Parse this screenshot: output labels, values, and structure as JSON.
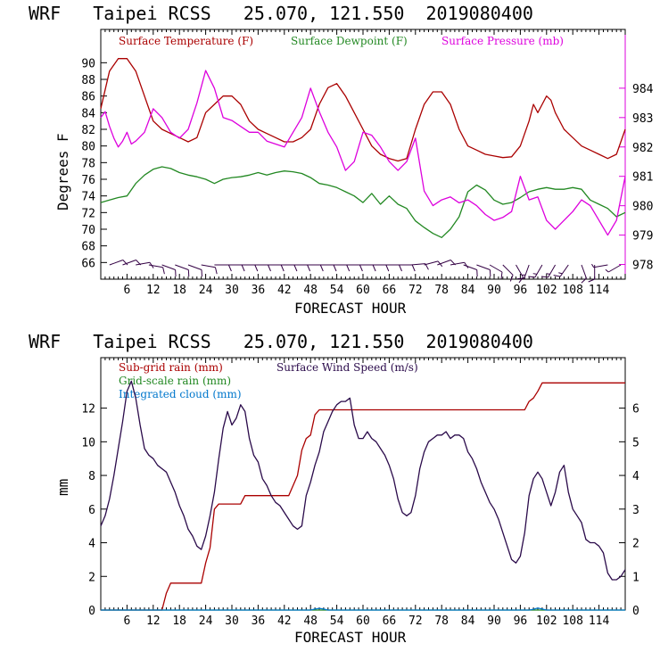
{
  "colors": {
    "temperature": "#aa0000",
    "dewpoint": "#228822",
    "pressure": "#dd00dd",
    "sub_grid_rain": "#aa0000",
    "wind_speed": "#2a0a4a",
    "grid_scale_rain": "#228822",
    "integrated_cloud": "#0077cc",
    "axis": "#000000",
    "right_axis_top": "#dd00dd"
  },
  "chart_data": [
    {
      "type": "line",
      "title": "WRF   Taipei RCSS   25.070, 121.550  2019080400",
      "xlabel": "FORECAST HOUR",
      "ylabel": "Degrees F",
      "xlim": [
        0,
        120
      ],
      "ylim": [
        64,
        94
      ],
      "y2lim": [
        977.5,
        986
      ],
      "xticks": [
        "6",
        "12",
        "18",
        "24",
        "30",
        "36",
        "42",
        "48",
        "54",
        "60",
        "66",
        "72",
        "78",
        "84",
        "90",
        "96",
        "102",
        "108",
        "114"
      ],
      "yticks": [
        "66",
        "68",
        "70",
        "72",
        "74",
        "76",
        "78",
        "80",
        "82",
        "84",
        "86",
        "88",
        "90"
      ],
      "y2ticks": [
        "978",
        "979",
        "980",
        "981",
        "982",
        "983",
        "984"
      ],
      "legend": [
        "Surface Temperature (F)",
        "Surface Dewpoint (F)",
        "Surface Pressure (mb)"
      ],
      "series": [
        {
          "name": "Surface Temperature (F)",
          "axis": "left",
          "x": [
            0,
            2,
            4,
            6,
            8,
            10,
            12,
            14,
            16,
            18,
            20,
            22,
            24,
            26,
            28,
            30,
            32,
            34,
            36,
            38,
            40,
            42,
            44,
            46,
            48,
            50,
            52,
            54,
            56,
            58,
            60,
            62,
            64,
            66,
            68,
            70,
            72,
            74,
            76,
            78,
            80,
            82,
            84,
            86,
            88,
            90,
            92,
            94,
            96,
            98,
            99,
            100,
            101,
            102,
            103,
            104,
            106,
            108,
            110,
            112,
            114,
            116,
            118,
            120
          ],
          "values": [
            84.5,
            89,
            90.5,
            90.5,
            89,
            86,
            83,
            82,
            81.5,
            81,
            80.5,
            81,
            84,
            85,
            86,
            86,
            85,
            83,
            82,
            81.5,
            81,
            80.5,
            80.5,
            81,
            82,
            85,
            87,
            87.5,
            86,
            84,
            82,
            80,
            79,
            78.5,
            78.2,
            78.5,
            82,
            85,
            86.5,
            86.5,
            85,
            82,
            80,
            79.5,
            79,
            78.8,
            78.6,
            78.7,
            80,
            83,
            85,
            84,
            85,
            86,
            85.5,
            84,
            82,
            81,
            80,
            79.5,
            79,
            78.5,
            79,
            82
          ]
        },
        {
          "name": "Surface Dewpoint (F)",
          "axis": "left",
          "x": [
            0,
            2,
            4,
            6,
            8,
            10,
            12,
            14,
            16,
            18,
            20,
            22,
            24,
            26,
            28,
            30,
            32,
            34,
            36,
            38,
            40,
            42,
            44,
            46,
            48,
            50,
            52,
            54,
            56,
            58,
            60,
            62,
            64,
            66,
            68,
            70,
            72,
            74,
            76,
            78,
            80,
            82,
            84,
            86,
            88,
            90,
            92,
            94,
            96,
            98,
            100,
            102,
            104,
            106,
            108,
            110,
            112,
            114,
            116,
            118,
            120
          ],
          "values": [
            73.2,
            73.5,
            73.8,
            74,
            75.5,
            76.5,
            77.2,
            77.5,
            77.3,
            76.8,
            76.5,
            76.3,
            76,
            75.5,
            76,
            76.2,
            76.3,
            76.5,
            76.8,
            76.5,
            76.8,
            77,
            76.9,
            76.7,
            76.2,
            75.5,
            75.3,
            75,
            74.5,
            74,
            73.2,
            74.3,
            73,
            74,
            73,
            72.5,
            71,
            70.2,
            69.5,
            69,
            70,
            71.5,
            74.5,
            75.3,
            74.7,
            73.5,
            73,
            73.2,
            73.8,
            74.5,
            74.8,
            75,
            74.8,
            74.8,
            75,
            74.8,
            73.5,
            73,
            72.5,
            71.5,
            72
          ]
        },
        {
          "name": "Surface Pressure (mb)",
          "axis": "right",
          "x": [
            0,
            1,
            2,
            3,
            4,
            5,
            6,
            7,
            8,
            10,
            12,
            14,
            16,
            18,
            20,
            22,
            24,
            26,
            28,
            30,
            32,
            34,
            36,
            38,
            40,
            42,
            44,
            46,
            48,
            50,
            52,
            54,
            56,
            58,
            60,
            62,
            64,
            66,
            68,
            70,
            72,
            74,
            76,
            78,
            80,
            82,
            84,
            86,
            88,
            90,
            92,
            94,
            96,
            98,
            100,
            102,
            104,
            106,
            108,
            110,
            112,
            114,
            116,
            118,
            120
          ],
          "values": [
            983,
            983.2,
            982.7,
            982.3,
            982,
            982.2,
            982.5,
            982.1,
            982.2,
            982.5,
            983.3,
            983,
            982.5,
            982.3,
            982.6,
            983.5,
            984.6,
            984,
            983,
            982.9,
            982.7,
            982.5,
            982.5,
            982.2,
            982.1,
            982,
            982.5,
            983,
            984,
            983.2,
            982.5,
            982,
            981.2,
            981.5,
            982.5,
            982.4,
            982,
            981.5,
            981.2,
            981.5,
            982.3,
            980.5,
            980,
            980.2,
            980.3,
            980.1,
            980.2,
            980,
            979.7,
            979.5,
            979.6,
            979.8,
            981,
            980.2,
            980.3,
            979.5,
            979.2,
            979.5,
            979.8,
            980.2,
            980,
            979.5,
            979,
            979.5,
            981
          ]
        }
      ],
      "wind_barbs": {
        "name": "Surface wind barbs",
        "x": [
          2,
          5,
          8,
          11,
          14,
          17,
          20,
          23,
          26,
          29,
          32,
          35,
          38,
          41,
          44,
          47,
          50,
          53,
          56,
          59,
          62,
          65,
          68,
          71,
          74,
          77,
          80,
          83,
          86,
          89,
          92,
          95,
          98,
          101,
          104,
          107,
          110,
          113,
          116,
          119
        ],
        "direction_deg": [
          70,
          70,
          80,
          100,
          110,
          110,
          110,
          100,
          90,
          90,
          90,
          90,
          90,
          90,
          90,
          90,
          90,
          90,
          90,
          90,
          90,
          90,
          90,
          85,
          75,
          70,
          80,
          110,
          110,
          120,
          135,
          150,
          200,
          210,
          210,
          215,
          160,
          180,
          260,
          240
        ],
        "speed_kt": [
          10,
          10,
          10,
          10,
          10,
          10,
          10,
          10,
          10,
          10,
          10,
          10,
          10,
          10,
          10,
          10,
          10,
          10,
          10,
          10,
          10,
          10,
          10,
          10,
          10,
          10,
          10,
          10,
          10,
          10,
          10,
          10,
          15,
          15,
          15,
          15,
          10,
          10,
          5,
          5
        ]
      }
    },
    {
      "type": "line",
      "title": "WRF   Taipei RCSS   25.070, 121.550  2019080400",
      "xlabel": "FORECAST HOUR",
      "ylabel": "mm",
      "xlim": [
        0,
        120
      ],
      "ylim": [
        0,
        15
      ],
      "y2lim": [
        0,
        7.5
      ],
      "xticks": [
        "6",
        "12",
        "18",
        "24",
        "30",
        "36",
        "42",
        "48",
        "54",
        "60",
        "66",
        "72",
        "78",
        "84",
        "90",
        "96",
        "102",
        "108",
        "114"
      ],
      "yticks": [
        "0",
        "2",
        "4",
        "6",
        "8",
        "10",
        "12"
      ],
      "y2ticks": [
        "0",
        "1",
        "2",
        "3",
        "4",
        "5",
        "6"
      ],
      "legend": [
        "Sub-grid rain (mm)",
        "Surface Wind Speed (m/s)",
        "Grid-scale rain (mm)",
        "Integrated cloud (mm)"
      ],
      "series": [
        {
          "name": "Sub-grid rain (mm)",
          "axis": "left",
          "x": [
            0,
            14,
            15,
            16,
            23,
            24,
            25,
            26,
            27,
            32,
            33,
            43,
            45,
            46,
            47,
            48,
            49,
            50,
            51,
            52,
            53,
            90,
            97,
            98,
            99,
            100,
            101,
            102,
            120
          ],
          "values": [
            0,
            0,
            1,
            1.6,
            1.6,
            2.8,
            3.7,
            6,
            6.3,
            6.3,
            6.8,
            6.8,
            8,
            9.5,
            10.2,
            10.4,
            11.6,
            11.9,
            11.9,
            11.9,
            11.9,
            11.9,
            11.9,
            12.4,
            12.6,
            13,
            13.5,
            13.5,
            13.5
          ]
        },
        {
          "name": "Surface Wind Speed (m/s)",
          "axis": "right",
          "x": [
            0,
            1,
            2,
            3,
            4,
            5,
            6,
            7,
            8,
            9,
            10,
            11,
            12,
            13,
            14,
            15,
            16,
            17,
            18,
            19,
            20,
            21,
            22,
            23,
            24,
            25,
            26,
            27,
            28,
            29,
            30,
            31,
            32,
            33,
            34,
            35,
            36,
            37,
            38,
            39,
            40,
            41,
            42,
            43,
            44,
            45,
            46,
            47,
            48,
            49,
            50,
            51,
            52,
            53,
            54,
            55,
            56,
            57,
            58,
            59,
            60,
            61,
            62,
            63,
            64,
            65,
            66,
            67,
            68,
            69,
            70,
            71,
            72,
            73,
            74,
            75,
            76,
            77,
            78,
            79,
            80,
            81,
            82,
            83,
            84,
            85,
            86,
            87,
            88,
            89,
            90,
            91,
            92,
            93,
            94,
            95,
            96,
            97,
            98,
            99,
            100,
            101,
            102,
            103,
            104,
            105,
            106,
            107,
            108,
            109,
            110,
            111,
            112,
            113,
            114,
            115,
            116,
            117,
            118,
            119,
            120
          ],
          "values": [
            2.5,
            2.8,
            3.3,
            4,
            4.8,
            5.6,
            6.5,
            6.8,
            6.3,
            5.5,
            4.8,
            4.6,
            4.5,
            4.3,
            4.2,
            4.1,
            3.8,
            3.5,
            3.1,
            2.8,
            2.4,
            2.2,
            1.9,
            1.8,
            2.2,
            2.8,
            3.5,
            4.5,
            5.4,
            5.9,
            5.5,
            5.7,
            6.1,
            5.9,
            5.1,
            4.6,
            4.4,
            3.9,
            3.7,
            3.4,
            3.2,
            3.1,
            2.9,
            2.7,
            2.5,
            2.4,
            2.5,
            3.4,
            3.8,
            4.3,
            4.7,
            5.3,
            5.6,
            5.9,
            6.1,
            6.2,
            6.2,
            6.3,
            5.5,
            5.1,
            5.1,
            5.3,
            5.1,
            5,
            4.8,
            4.6,
            4.3,
            3.9,
            3.3,
            2.9,
            2.8,
            2.9,
            3.4,
            4.2,
            4.7,
            5,
            5.1,
            5.2,
            5.2,
            5.3,
            5.1,
            5.2,
            5.2,
            5.1,
            4.7,
            4.5,
            4.2,
            3.8,
            3.5,
            3.2,
            3,
            2.7,
            2.3,
            1.9,
            1.5,
            1.4,
            1.6,
            2.3,
            3.4,
            3.9,
            4.1,
            3.9,
            3.5,
            3.1,
            3.5,
            4.1,
            4.3,
            3.5,
            3,
            2.8,
            2.6,
            2.1,
            2,
            2,
            1.9,
            1.7,
            1.1,
            0.9,
            0.9,
            1,
            1.2
          ]
        },
        {
          "name": "Grid-scale rain (mm)",
          "axis": "left",
          "x": [
            0,
            120
          ],
          "values": [
            0,
            0
          ]
        },
        {
          "name": "Integrated cloud (mm)",
          "axis": "left",
          "x": [
            0,
            48,
            49,
            50,
            51,
            52,
            98,
            99,
            100,
            101,
            102,
            120
          ],
          "values": [
            0,
            0,
            0.06,
            0.1,
            0.06,
            0,
            0,
            0.05,
            0.12,
            0.06,
            0,
            0
          ]
        }
      ]
    }
  ]
}
